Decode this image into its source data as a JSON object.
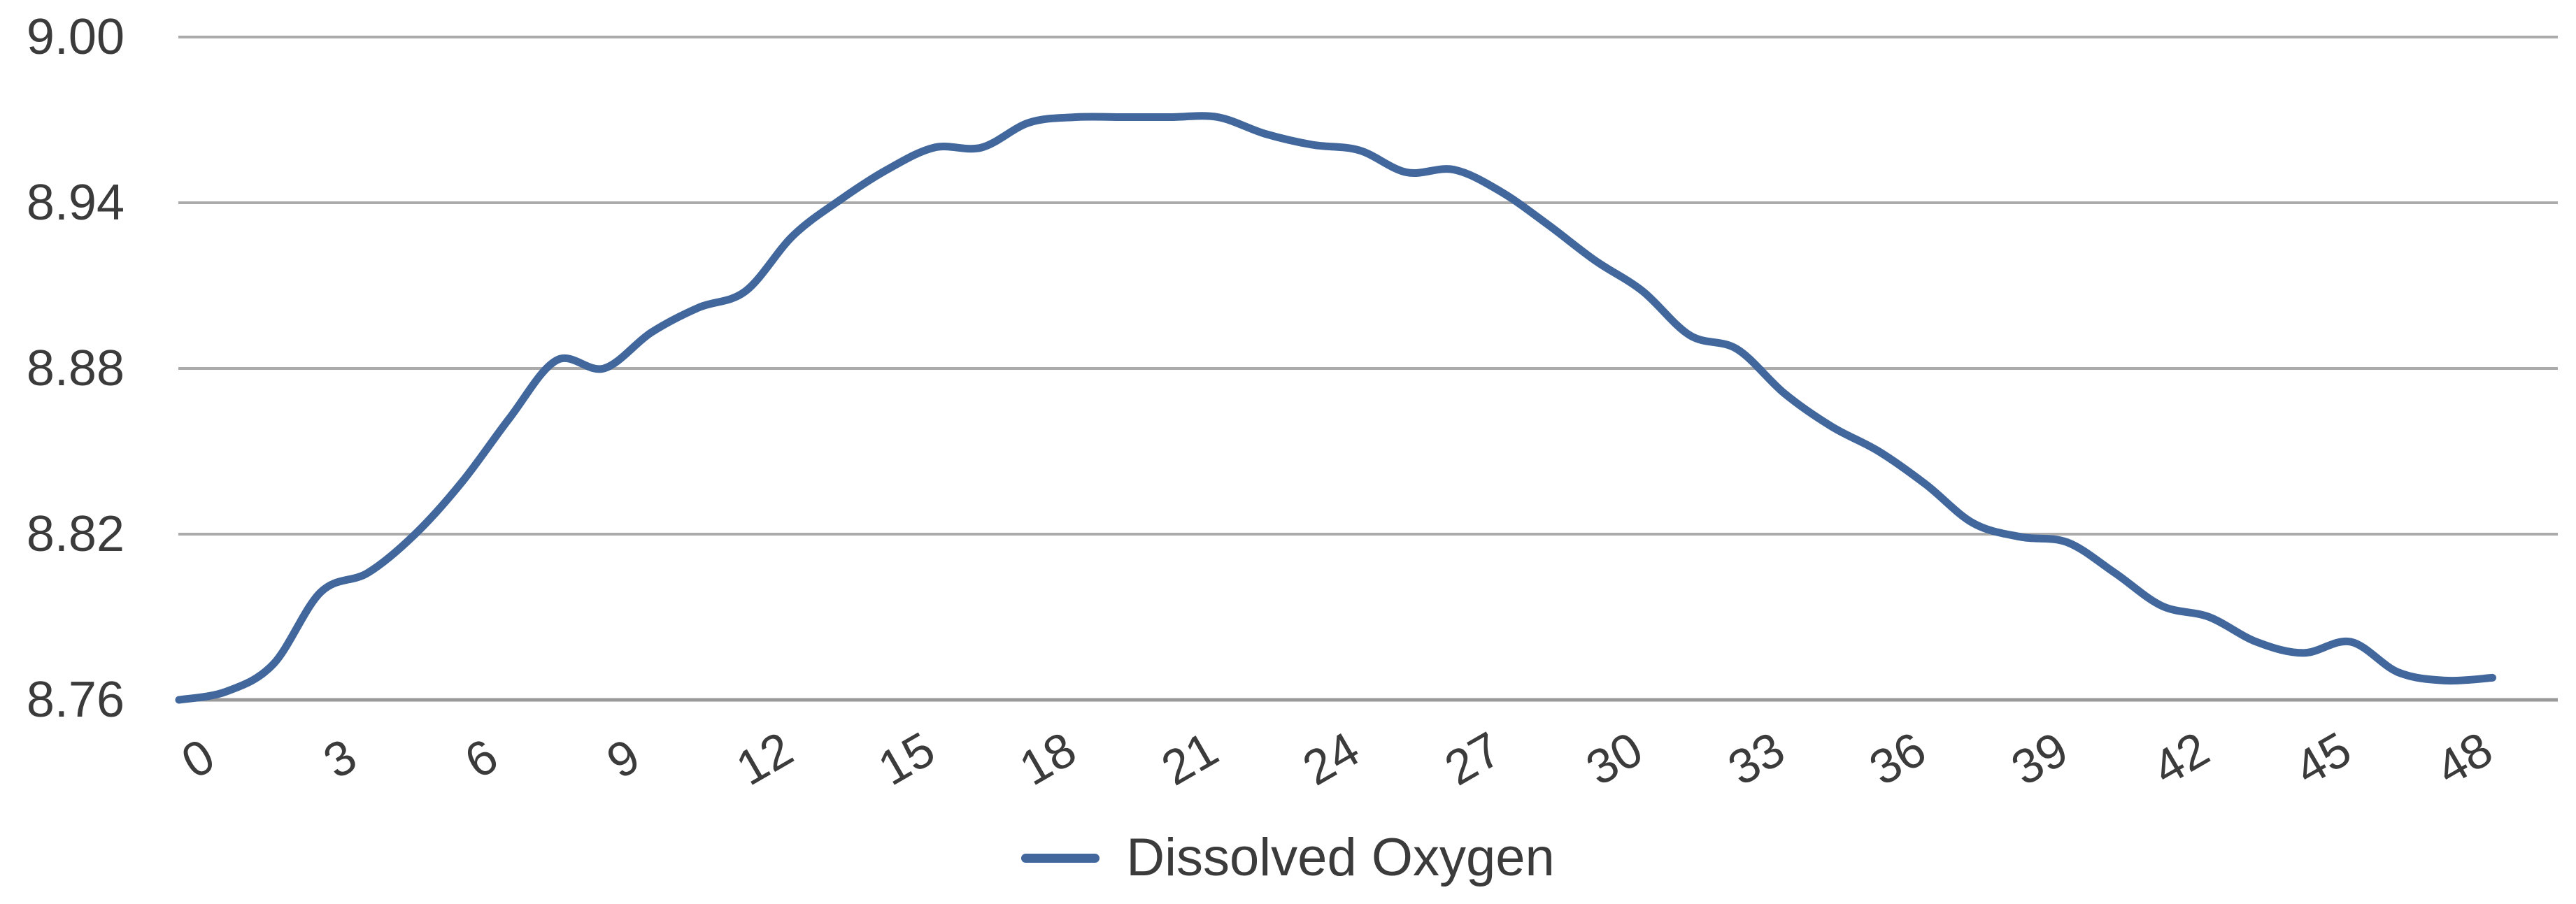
{
  "legend": {
    "label": "Dissolved Oxygen"
  },
  "colors": {
    "series_line": "#41679c",
    "gridline": "#ababab",
    "axis_line": "#9a9a9a",
    "text": "#3b3b3b",
    "background": "#ffffff"
  },
  "chart_data": {
    "type": "line",
    "smooth": true,
    "title": "",
    "xlabel": "",
    "ylabel": "",
    "legend_position": "bottom-center",
    "grid": "horizontal",
    "ylim": [
      8.76,
      9.0
    ],
    "y_ticks": [
      {
        "value": 9.0,
        "label": "9.00"
      },
      {
        "value": 8.94,
        "label": "8.94"
      },
      {
        "value": 8.88,
        "label": "8.88"
      },
      {
        "value": 8.82,
        "label": "8.82"
      },
      {
        "value": 8.76,
        "label": "8.76"
      }
    ],
    "x_tick_labels": [
      "0",
      "3",
      "6",
      "9",
      "12",
      "15",
      "18",
      "21",
      "24",
      "27",
      "30",
      "33",
      "36",
      "39",
      "42",
      "45",
      "48"
    ],
    "x_tick_step": 3,
    "x": [
      0,
      1,
      2,
      3,
      4,
      5,
      6,
      7,
      8,
      9,
      10,
      11,
      12,
      13,
      14,
      15,
      16,
      17,
      18,
      19,
      20,
      21,
      22,
      23,
      24,
      25,
      26,
      27,
      28,
      29,
      30,
      31,
      32,
      33,
      34,
      35,
      36,
      37,
      38,
      39,
      40,
      41,
      42,
      43,
      44,
      45,
      46,
      47,
      48,
      49
    ],
    "series": [
      {
        "name": "Dissolved Oxygen",
        "values": [
          8.76,
          8.763,
          8.773,
          8.799,
          8.806,
          8.82,
          8.839,
          8.862,
          8.883,
          8.88,
          8.893,
          8.902,
          8.908,
          8.928,
          8.941,
          8.952,
          8.96,
          8.96,
          8.969,
          8.971,
          8.971,
          8.971,
          8.971,
          8.965,
          8.961,
          8.959,
          8.951,
          8.952,
          8.944,
          8.932,
          8.919,
          8.908,
          8.892,
          8.887,
          8.871,
          8.859,
          8.85,
          8.838,
          8.824,
          8.819,
          8.817,
          8.806,
          8.794,
          8.79,
          8.781,
          8.777,
          8.781,
          8.77,
          8.767,
          8.768
        ]
      }
    ]
  }
}
